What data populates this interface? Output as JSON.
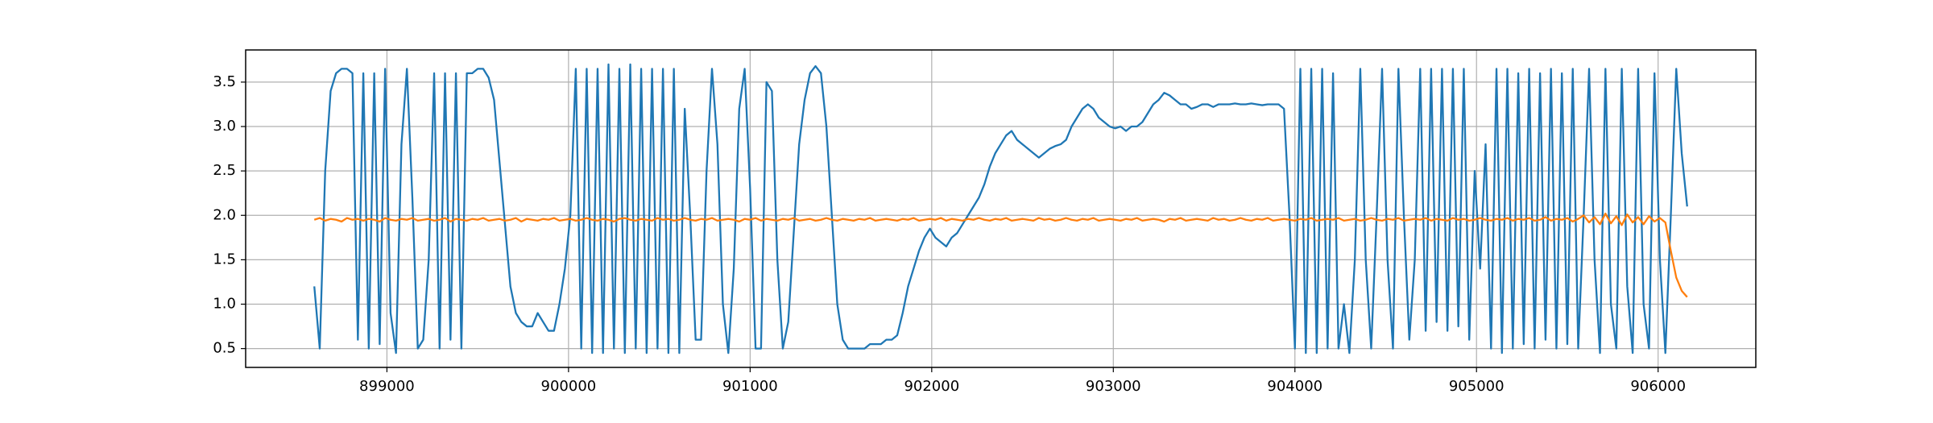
{
  "chart_data": {
    "type": "line",
    "x": [
      898600,
      898630,
      898660,
      898690,
      898720,
      898750,
      898780,
      898810,
      898840,
      898870,
      898900,
      898930,
      898960,
      898990,
      899020,
      899050,
      899080,
      899110,
      899140,
      899170,
      899200,
      899230,
      899260,
      899290,
      899320,
      899350,
      899380,
      899410,
      899440,
      899470,
      899500,
      899530,
      899560,
      899590,
      899620,
      899650,
      899680,
      899710,
      899740,
      899770,
      899800,
      899830,
      899860,
      899890,
      899920,
      899950,
      899980,
      900010,
      900040,
      900070,
      900100,
      900130,
      900160,
      900190,
      900220,
      900250,
      900280,
      900310,
      900340,
      900370,
      900400,
      900430,
      900460,
      900490,
      900520,
      900550,
      900580,
      900610,
      900640,
      900670,
      900700,
      900730,
      900760,
      900790,
      900820,
      900850,
      900880,
      900910,
      900940,
      900970,
      901000,
      901030,
      901060,
      901090,
      901120,
      901150,
      901180,
      901210,
      901240,
      901270,
      901300,
      901330,
      901360,
      901390,
      901420,
      901450,
      901480,
      901510,
      901540,
      901570,
      901600,
      901630,
      901660,
      901690,
      901720,
      901750,
      901780,
      901810,
      901840,
      901870,
      901900,
      901930,
      901960,
      901990,
      902020,
      902050,
      902080,
      902110,
      902140,
      902170,
      902200,
      902230,
      902260,
      902290,
      902320,
      902350,
      902380,
      902410,
      902440,
      902470,
      902500,
      902530,
      902560,
      902590,
      902620,
      902650,
      902680,
      902710,
      902740,
      902770,
      902800,
      902830,
      902860,
      902890,
      902920,
      902950,
      902980,
      903010,
      903040,
      903070,
      903100,
      903130,
      903160,
      903190,
      903220,
      903250,
      903280,
      903310,
      903340,
      903370,
      903400,
      903430,
      903460,
      903490,
      903520,
      903550,
      903580,
      903610,
      903640,
      903670,
      903700,
      903730,
      903760,
      903790,
      903820,
      903850,
      903880,
      903910,
      903940,
      903970,
      904000,
      904030,
      904060,
      904090,
      904120,
      904150,
      904180,
      904210,
      904240,
      904270,
      904300,
      904330,
      904360,
      904390,
      904420,
      904450,
      904480,
      904510,
      904540,
      904570,
      904600,
      904630,
      904660,
      904690,
      904720,
      904750,
      904780,
      904810,
      904840,
      904870,
      904900,
      904930,
      904960,
      904990,
      905020,
      905050,
      905080,
      905110,
      905140,
      905170,
      905200,
      905230,
      905260,
      905290,
      905320,
      905350,
      905380,
      905410,
      905440,
      905470,
      905500,
      905530,
      905560,
      905590,
      905620,
      905650,
      905680,
      905710,
      905740,
      905770,
      905800,
      905830,
      905860,
      905890,
      905920,
      905950,
      905980,
      906010,
      906040,
      906070,
      906100,
      906130,
      906160
    ],
    "series": [
      {
        "color": "#1f77b4",
        "values": [
          1.2,
          0.5,
          2.5,
          3.4,
          3.6,
          3.65,
          3.65,
          3.6,
          0.6,
          3.6,
          0.5,
          3.6,
          0.55,
          3.65,
          0.9,
          0.45,
          2.8,
          3.65,
          2.2,
          0.5,
          0.6,
          1.5,
          3.6,
          0.5,
          3.6,
          0.6,
          3.6,
          0.5,
          3.6,
          3.6,
          3.65,
          3.65,
          3.55,
          3.3,
          2.6,
          1.9,
          1.2,
          0.9,
          0.8,
          0.75,
          0.75,
          0.9,
          0.8,
          0.7,
          0.7,
          1.0,
          1.4,
          2.0,
          3.65,
          0.5,
          3.65,
          0.45,
          3.65,
          0.45,
          3.7,
          0.5,
          3.65,
          0.45,
          3.7,
          0.5,
          3.65,
          0.45,
          3.65,
          0.5,
          3.65,
          0.45,
          3.65,
          0.45,
          3.2,
          2.0,
          0.6,
          0.6,
          2.5,
          3.65,
          2.8,
          1.0,
          0.45,
          1.4,
          3.2,
          3.65,
          2.3,
          0.5,
          0.5,
          3.5,
          3.4,
          1.5,
          0.5,
          0.8,
          1.8,
          2.8,
          3.3,
          3.6,
          3.68,
          3.6,
          3.0,
          2.0,
          1.0,
          0.6,
          0.5,
          0.5,
          0.5,
          0.5,
          0.55,
          0.55,
          0.55,
          0.6,
          0.6,
          0.65,
          0.9,
          1.2,
          1.4,
          1.6,
          1.75,
          1.85,
          1.75,
          1.7,
          1.65,
          1.75,
          1.8,
          1.9,
          2.0,
          2.1,
          2.2,
          2.35,
          2.55,
          2.7,
          2.8,
          2.9,
          2.95,
          2.85,
          2.8,
          2.75,
          2.7,
          2.65,
          2.7,
          2.75,
          2.78,
          2.8,
          2.85,
          3.0,
          3.1,
          3.2,
          3.25,
          3.2,
          3.1,
          3.05,
          3.0,
          2.98,
          3.0,
          2.95,
          3.0,
          3.0,
          3.05,
          3.15,
          3.25,
          3.3,
          3.38,
          3.35,
          3.3,
          3.25,
          3.25,
          3.2,
          3.22,
          3.25,
          3.25,
          3.22,
          3.25,
          3.25,
          3.25,
          3.26,
          3.25,
          3.25,
          3.26,
          3.25,
          3.24,
          3.25,
          3.25,
          3.25,
          3.2,
          2.0,
          0.5,
          3.65,
          0.45,
          3.65,
          0.45,
          3.65,
          0.5,
          3.6,
          0.5,
          1.0,
          0.45,
          1.5,
          3.65,
          1.5,
          0.5,
          2.0,
          3.65,
          1.5,
          0.5,
          3.65,
          2.0,
          0.6,
          1.5,
          3.65,
          0.7,
          3.65,
          0.8,
          3.65,
          0.7,
          3.65,
          0.75,
          3.65,
          0.6,
          2.5,
          1.4,
          2.8,
          0.5,
          3.65,
          0.45,
          3.65,
          0.5,
          3.6,
          0.55,
          3.65,
          0.5,
          3.6,
          0.6,
          3.65,
          0.5,
          3.6,
          0.55,
          3.65,
          0.5,
          2.0,
          3.65,
          1.5,
          0.45,
          3.65,
          1.0,
          0.5,
          3.65,
          1.2,
          0.45,
          3.65,
          1.0,
          0.5,
          3.6,
          1.5,
          0.45,
          2.0,
          3.65,
          2.7,
          2.1
        ]
      },
      {
        "color": "#ff7f0e",
        "values": [
          1.95,
          1.97,
          1.94,
          1.96,
          1.95,
          1.93,
          1.97,
          1.95,
          1.96,
          1.94,
          1.96,
          1.95,
          1.93,
          1.97,
          1.95,
          1.94,
          1.96,
          1.95,
          1.97,
          1.94,
          1.95,
          1.96,
          1.94,
          1.95,
          1.97,
          1.93,
          1.96,
          1.95,
          1.94,
          1.96,
          1.95,
          1.97,
          1.94,
          1.95,
          1.96,
          1.94,
          1.95,
          1.97,
          1.93,
          1.96,
          1.95,
          1.94,
          1.96,
          1.95,
          1.97,
          1.94,
          1.95,
          1.96,
          1.94,
          1.95,
          1.97,
          1.95,
          1.94,
          1.96,
          1.95,
          1.93,
          1.96,
          1.97,
          1.95,
          1.94,
          1.96,
          1.95,
          1.94,
          1.97,
          1.95,
          1.96,
          1.94,
          1.95,
          1.97,
          1.95,
          1.94,
          1.96,
          1.95,
          1.97,
          1.94,
          1.95,
          1.96,
          1.95,
          1.93,
          1.96,
          1.95,
          1.97,
          1.94,
          1.96,
          1.95,
          1.94,
          1.96,
          1.95,
          1.97,
          1.94,
          1.95,
          1.96,
          1.94,
          1.95,
          1.97,
          1.95,
          1.94,
          1.96,
          1.95,
          1.94,
          1.96,
          1.95,
          1.97,
          1.94,
          1.95,
          1.96,
          1.95,
          1.94,
          1.96,
          1.95,
          1.97,
          1.94,
          1.95,
          1.96,
          1.95,
          1.97,
          1.94,
          1.96,
          1.95,
          1.94,
          1.96,
          1.95,
          1.97,
          1.95,
          1.94,
          1.96,
          1.95,
          1.97,
          1.94,
          1.95,
          1.96,
          1.95,
          1.94,
          1.97,
          1.95,
          1.96,
          1.94,
          1.95,
          1.97,
          1.95,
          1.94,
          1.96,
          1.95,
          1.97,
          1.94,
          1.95,
          1.96,
          1.95,
          1.94,
          1.96,
          1.95,
          1.97,
          1.94,
          1.95,
          1.96,
          1.95,
          1.93,
          1.96,
          1.95,
          1.97,
          1.94,
          1.95,
          1.96,
          1.95,
          1.94,
          1.97,
          1.95,
          1.96,
          1.94,
          1.95,
          1.97,
          1.95,
          1.94,
          1.96,
          1.95,
          1.97,
          1.94,
          1.95,
          1.96,
          1.95,
          1.94,
          1.96,
          1.95,
          1.97,
          1.94,
          1.95,
          1.96,
          1.95,
          1.97,
          1.94,
          1.95,
          1.96,
          1.94,
          1.95,
          1.97,
          1.95,
          1.94,
          1.96,
          1.95,
          1.97,
          1.94,
          1.95,
          1.96,
          1.95,
          1.97,
          1.94,
          1.96,
          1.95,
          1.94,
          1.97,
          1.95,
          1.96,
          1.94,
          1.95,
          1.97,
          1.95,
          1.94,
          1.96,
          1.95,
          1.97,
          1.94,
          1.96,
          1.95,
          1.97,
          1.94,
          1.95,
          1.98,
          1.94,
          1.96,
          1.95,
          1.97,
          1.93,
          1.96,
          2.0,
          1.92,
          1.98,
          1.9,
          2.02,
          1.91,
          1.99,
          1.89,
          2.01,
          1.92,
          1.98,
          1.9,
          1.99,
          1.93,
          1.97,
          1.92,
          1.6,
          1.3,
          1.15,
          1.08
        ]
      }
    ],
    "xlim": [
      898222,
      906538
    ],
    "ylim": [
      0.288,
      3.862
    ],
    "xticks": [
      899000,
      900000,
      901000,
      902000,
      903000,
      904000,
      905000,
      906000
    ],
    "yticks": [
      0.5,
      {
        "value": 1.0,
        "label": "1.0"
      },
      1.5,
      {
        "value": 2.0,
        "label": "2.0"
      },
      2.5,
      {
        "value": 3.0,
        "label": "3.0"
      },
      3.5
    ],
    "grid": true
  }
}
